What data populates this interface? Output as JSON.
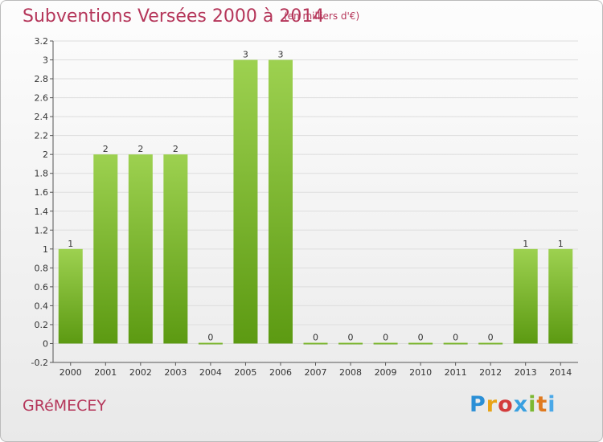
{
  "header": {
    "title": "Subventions Versées 2000 à 2014",
    "subtitle": "(en milliers d'€)"
  },
  "footer": {
    "commune": "GRéMECEY",
    "logo_letters": [
      "P",
      "r",
      "o",
      "x",
      "i",
      "t",
      "i"
    ]
  },
  "colors": {
    "title": "#b5365a",
    "bar_top": "#9dd150",
    "bar_bottom": "#5c9a12",
    "grid": "#dddddd"
  },
  "chart_data": {
    "type": "bar",
    "categories": [
      "2000",
      "2001",
      "2002",
      "2003",
      "2004",
      "2005",
      "2006",
      "2007",
      "2008",
      "2009",
      "2010",
      "2011",
      "2012",
      "2013",
      "2014"
    ],
    "values": [
      1,
      2,
      2,
      2,
      0,
      3,
      3,
      0,
      0,
      0,
      0,
      0,
      0,
      1,
      1
    ],
    "data_labels": [
      "1",
      "2",
      "2",
      "2",
      "0",
      "3",
      "3",
      "0",
      "0",
      "0",
      "0",
      "0",
      "0",
      "1",
      "1"
    ],
    "ylim": [
      -0.2,
      3.2
    ],
    "yticks": [
      {
        "value": -0.2,
        "label": "-0.2"
      },
      {
        "value": 0,
        "label": "0"
      },
      {
        "value": 0.2,
        "label": "0.2"
      },
      {
        "value": 0.4,
        "label": "0.4"
      },
      {
        "value": 0.6,
        "label": "0.6"
      },
      {
        "value": 0.8,
        "label": "0.8"
      },
      {
        "value": 1,
        "label": "1"
      },
      {
        "value": 1.2,
        "label": "1.2"
      },
      {
        "value": 1.4,
        "label": "1.4"
      },
      {
        "value": 1.6,
        "label": "1.6"
      },
      {
        "value": 1.8,
        "label": "1.8"
      },
      {
        "value": 2,
        "label": "2"
      },
      {
        "value": 2.2,
        "label": "2.2"
      },
      {
        "value": 2.4,
        "label": "2.4"
      },
      {
        "value": 2.6,
        "label": "2.6"
      },
      {
        "value": 2.8,
        "label": "2.8"
      },
      {
        "value": 3,
        "label": "3"
      },
      {
        "value": 3.2,
        "label": "3.2"
      }
    ],
    "grid": true
  }
}
